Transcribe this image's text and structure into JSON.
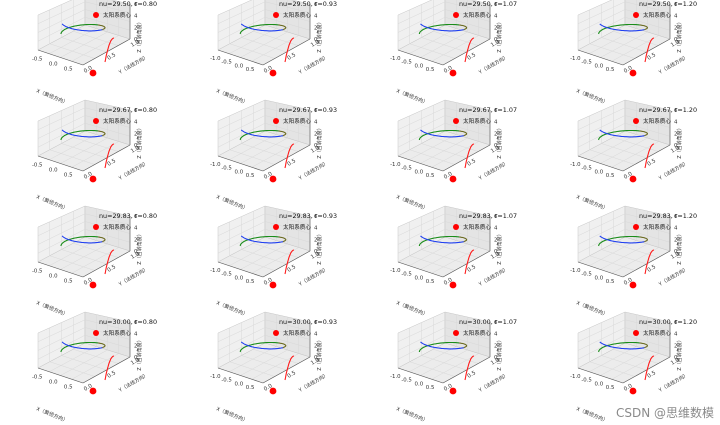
{
  "figure": {
    "legend_label": "太阳系质心",
    "marker_color": "#ff0000",
    "watermark": "CSDN @思维数模",
    "axis_labels": {
      "x": "X（黄经方向）",
      "y": "Y（法线方向）",
      "z": "Z（自转角度）"
    },
    "colors": {
      "early": "#1a8c1a",
      "late": "#1f3ff0",
      "tail": "#ff1a1a",
      "panes": "#f0f0f0",
      "grid": "#d8d8d8"
    }
  },
  "chart_data": [
    {
      "type": "line3d",
      "title": "nu=29.50,  r=0.80",
      "r": 0.8,
      "xticks": [
        "-0.5",
        "0.0",
        "0.5"
      ],
      "yticks": [
        "0.0",
        "0.5",
        "1.0"
      ],
      "zticks": [
        "0",
        "2",
        "4",
        "6"
      ],
      "xlabel": "X（黄经方向）",
      "ylabel": "Y（法线方向）",
      "zlabel": "Z（自转角度）",
      "legend": "太阳系质心",
      "marker": {
        "x": 0,
        "y": 0,
        "z": 0
      }
    },
    {
      "type": "line3d",
      "title": "nu=29.50,  r=0.93",
      "r": 0.93,
      "xticks": [
        "-1.0",
        "-0.5",
        "0.0",
        "0.5"
      ],
      "yticks": [
        "0.0",
        "0.5",
        "1.0"
      ],
      "zticks": [
        "0",
        "2",
        "4",
        "6"
      ],
      "xlabel": "X（黄经方向）",
      "ylabel": "Y（法线方向）",
      "zlabel": "Z（自转角度）",
      "legend": "太阳系质心",
      "marker": {
        "x": 0,
        "y": 0,
        "z": 0
      }
    },
    {
      "type": "line3d",
      "title": "nu=29.50,  r=1.07",
      "r": 1.07,
      "xticks": [
        "-1.0",
        "-0.5",
        "0.0",
        "0.5"
      ],
      "yticks": [
        "0.0",
        "0.5",
        "1.0"
      ],
      "zticks": [
        "0",
        "2",
        "4",
        "6"
      ],
      "xlabel": "X（黄经方向）",
      "ylabel": "Y（法线方向）",
      "zlabel": "Z（自转角度）",
      "legend": "太阳系质心",
      "marker": {
        "x": 0,
        "y": 0,
        "z": 0
      }
    },
    {
      "type": "line3d",
      "title": "nu=29.50,  r=1.20",
      "r": 1.2,
      "xticks": [
        "-1.0",
        "-0.5",
        "0.0",
        "0.5"
      ],
      "yticks": [
        "0.0",
        "0.5",
        "1.0"
      ],
      "zticks": [
        "0",
        "2",
        "4",
        "6"
      ],
      "xlabel": "X（黄经方向）",
      "ylabel": "Y（法线方向）",
      "zlabel": "Z（自转角度）",
      "legend": "太阳系质心",
      "marker": {
        "x": 0,
        "y": 0,
        "z": 0
      }
    },
    {
      "type": "line3d",
      "title": "nu=29.67,  r=0.80",
      "r": 0.8,
      "xticks": [
        "-0.5",
        "0.0",
        "0.5"
      ],
      "yticks": [
        "0.0",
        "0.5",
        "1.0"
      ],
      "zticks": [
        "0",
        "2",
        "4",
        "6"
      ],
      "xlabel": "X（黄经方向）",
      "ylabel": "Y（法线方向）",
      "zlabel": "Z（自转角度）",
      "legend": "太阳系质心",
      "marker": {
        "x": 0,
        "y": 0,
        "z": 0
      }
    },
    {
      "type": "line3d",
      "title": "nu=29.67,  r=0.93",
      "r": 0.93,
      "xticks": [
        "-1.0",
        "-0.5",
        "0.0",
        "0.5"
      ],
      "yticks": [
        "0.0",
        "0.5",
        "1.0"
      ],
      "zticks": [
        "0",
        "2",
        "4",
        "6"
      ],
      "xlabel": "X（黄经方向）",
      "ylabel": "Y（法线方向）",
      "zlabel": "Z（自转角度）",
      "legend": "太阳系质心",
      "marker": {
        "x": 0,
        "y": 0,
        "z": 0
      }
    },
    {
      "type": "line3d",
      "title": "nu=29.67,  r=1.07",
      "r": 1.07,
      "xticks": [
        "-1.0",
        "-0.5",
        "0.0",
        "0.5"
      ],
      "yticks": [
        "0.0",
        "0.5",
        "1.0"
      ],
      "zticks": [
        "0",
        "2",
        "4",
        "6"
      ],
      "xlabel": "X（黄经方向）",
      "ylabel": "Y（法线方向）",
      "zlabel": "Z（自转角度）",
      "legend": "太阳系质心",
      "marker": {
        "x": 0,
        "y": 0,
        "z": 0
      }
    },
    {
      "type": "line3d",
      "title": "nu=29.67,  r=1.20",
      "r": 1.2,
      "xticks": [
        "-1.0",
        "-0.5",
        "0.0",
        "0.5"
      ],
      "yticks": [
        "0.0",
        "0.5",
        "1.0"
      ],
      "zticks": [
        "0",
        "2",
        "4",
        "6"
      ],
      "xlabel": "X（黄经方向）",
      "ylabel": "Y（法线方向）",
      "zlabel": "Z（自转角度）",
      "legend": "太阳系质心",
      "marker": {
        "x": 0,
        "y": 0,
        "z": 0
      }
    },
    {
      "type": "line3d",
      "title": "nu=29.83,  r=0.80",
      "r": 0.8,
      "xticks": [
        "-0.5",
        "0.0",
        "0.5"
      ],
      "yticks": [
        "0.0",
        "0.5",
        "1.0"
      ],
      "zticks": [
        "0",
        "2",
        "4",
        "6"
      ],
      "xlabel": "X（黄经方向）",
      "ylabel": "Y（法线方向）",
      "zlabel": "Z（自转角度）",
      "legend": "太阳系质心",
      "marker": {
        "x": 0,
        "y": 0,
        "z": 0
      }
    },
    {
      "type": "line3d",
      "title": "nu=29.83,  r=0.93",
      "r": 0.93,
      "xticks": [
        "-1.0",
        "-0.5",
        "0.0",
        "0.5"
      ],
      "yticks": [
        "0.0",
        "0.5",
        "1.0"
      ],
      "zticks": [
        "0",
        "2",
        "4",
        "6"
      ],
      "xlabel": "X（黄经方向）",
      "ylabel": "Y（法线方向）",
      "zlabel": "Z（自转角度）",
      "legend": "太阳系质心",
      "marker": {
        "x": 0,
        "y": 0,
        "z": 0
      }
    },
    {
      "type": "line3d",
      "title": "nu=29.83,  r=1.07",
      "r": 1.07,
      "xticks": [
        "-1.0",
        "-0.5",
        "0.0",
        "0.5"
      ],
      "yticks": [
        "0.0",
        "0.5",
        "1.0"
      ],
      "zticks": [
        "0",
        "2",
        "4",
        "6"
      ],
      "xlabel": "X（黄经方向）",
      "ylabel": "Y（法线方向）",
      "zlabel": "Z（自转角度）",
      "legend": "太阳系质心",
      "marker": {
        "x": 0,
        "y": 0,
        "z": 0
      }
    },
    {
      "type": "line3d",
      "title": "nu=29.83,  r=1.20",
      "r": 1.2,
      "xticks": [
        "-1.0",
        "-0.5",
        "0.0",
        "0.5"
      ],
      "yticks": [
        "0.0",
        "0.5",
        "1.0"
      ],
      "zticks": [
        "0",
        "2",
        "4",
        "6"
      ],
      "xlabel": "X（黄经方向）",
      "ylabel": "Y（法线方向）",
      "zlabel": "Z（自转角度）",
      "legend": "太阳系质心",
      "marker": {
        "x": 0,
        "y": 0,
        "z": 0
      }
    },
    {
      "type": "line3d",
      "title": "nu=30.00,  r=0.80",
      "r": 0.8,
      "xticks": [
        "-0.5",
        "0.0",
        "0.5"
      ],
      "yticks": [
        "0.0",
        "0.5",
        "1.0"
      ],
      "zticks": [
        "0",
        "2",
        "4",
        "6"
      ],
      "xlabel": "X（黄经方向）",
      "ylabel": "Y（法线方向）",
      "zlabel": "Z（自转角度）",
      "legend": "太阳系质心",
      "marker": {
        "x": 0,
        "y": 0,
        "z": 0
      }
    },
    {
      "type": "line3d",
      "title": "nu=30.00,  r=0.93",
      "r": 0.93,
      "xticks": [
        "-1.0",
        "-0.5",
        "0.0",
        "0.5"
      ],
      "yticks": [
        "0.0",
        "0.5",
        "1.0"
      ],
      "zticks": [
        "0",
        "2",
        "4",
        "6"
      ],
      "xlabel": "X（黄经方向）",
      "ylabel": "Y（法线方向）",
      "zlabel": "Z（自转角度）",
      "legend": "太阳系质心",
      "marker": {
        "x": 0,
        "y": 0,
        "z": 0
      }
    },
    {
      "type": "line3d",
      "title": "nu=30.00,  r=1.07",
      "r": 1.07,
      "xticks": [
        "-1.0",
        "-0.5",
        "0.0",
        "0.5"
      ],
      "yticks": [
        "0.0",
        "0.5",
        "1.0"
      ],
      "zticks": [
        "0",
        "2",
        "4",
        "6"
      ],
      "xlabel": "X（黄经方向）",
      "ylabel": "Y（法线方向）",
      "zlabel": "Z（自转角度）",
      "legend": "太阳系质心",
      "marker": {
        "x": 0,
        "y": 0,
        "z": 0
      }
    },
    {
      "type": "line3d",
      "title": "nu=30.00,  r=1.20",
      "r": 1.2,
      "xticks": [
        "-1.0",
        "-0.5",
        "0.0",
        "0.5"
      ],
      "yticks": [
        "0.0",
        "0.5",
        "1.0"
      ],
      "zticks": [
        "0",
        "2",
        "4",
        "6"
      ],
      "xlabel": "X（黄经方向）",
      "ylabel": "Y（法线方向）",
      "zlabel": "Z（自转角度）",
      "legend": "太阳系质心",
      "marker": {
        "x": 0,
        "y": 0,
        "z": 0
      }
    }
  ]
}
